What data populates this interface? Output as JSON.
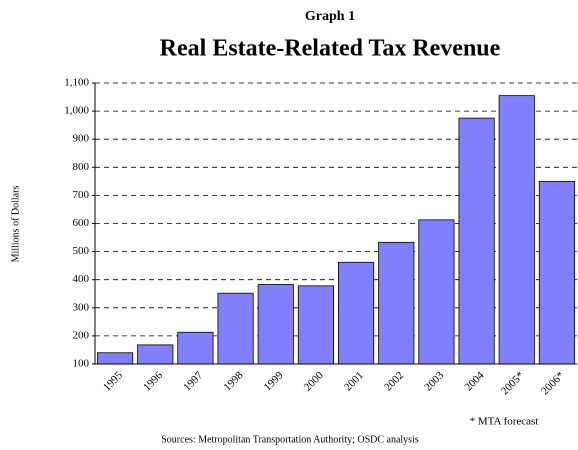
{
  "chart_data": {
    "type": "bar",
    "subtitle": "Graph 1",
    "title": "Real Estate-Related Tax Revenue",
    "y_label": "Millions of Dollars",
    "categories": [
      "1995",
      "1996",
      "1997",
      "1998",
      "1999",
      "2000",
      "2001",
      "2002",
      "2003",
      "2004",
      "2005*",
      "2006*"
    ],
    "values": [
      140,
      168,
      213,
      352,
      383,
      378,
      462,
      533,
      613,
      975,
      1055,
      750
    ],
    "color": "#8080ff",
    "ylim": [
      100,
      1100
    ],
    "yticks": [
      100,
      200,
      300,
      400,
      500,
      600,
      700,
      800,
      900,
      {
        "value": 1000,
        "label": "1,000"
      },
      {
        "value": 1100,
        "label": "1,100"
      }
    ],
    "grid": true,
    "annotation": "* MTA forecast",
    "source": "Sources: Metropolitan Transportation Authority; OSDC analysis"
  }
}
